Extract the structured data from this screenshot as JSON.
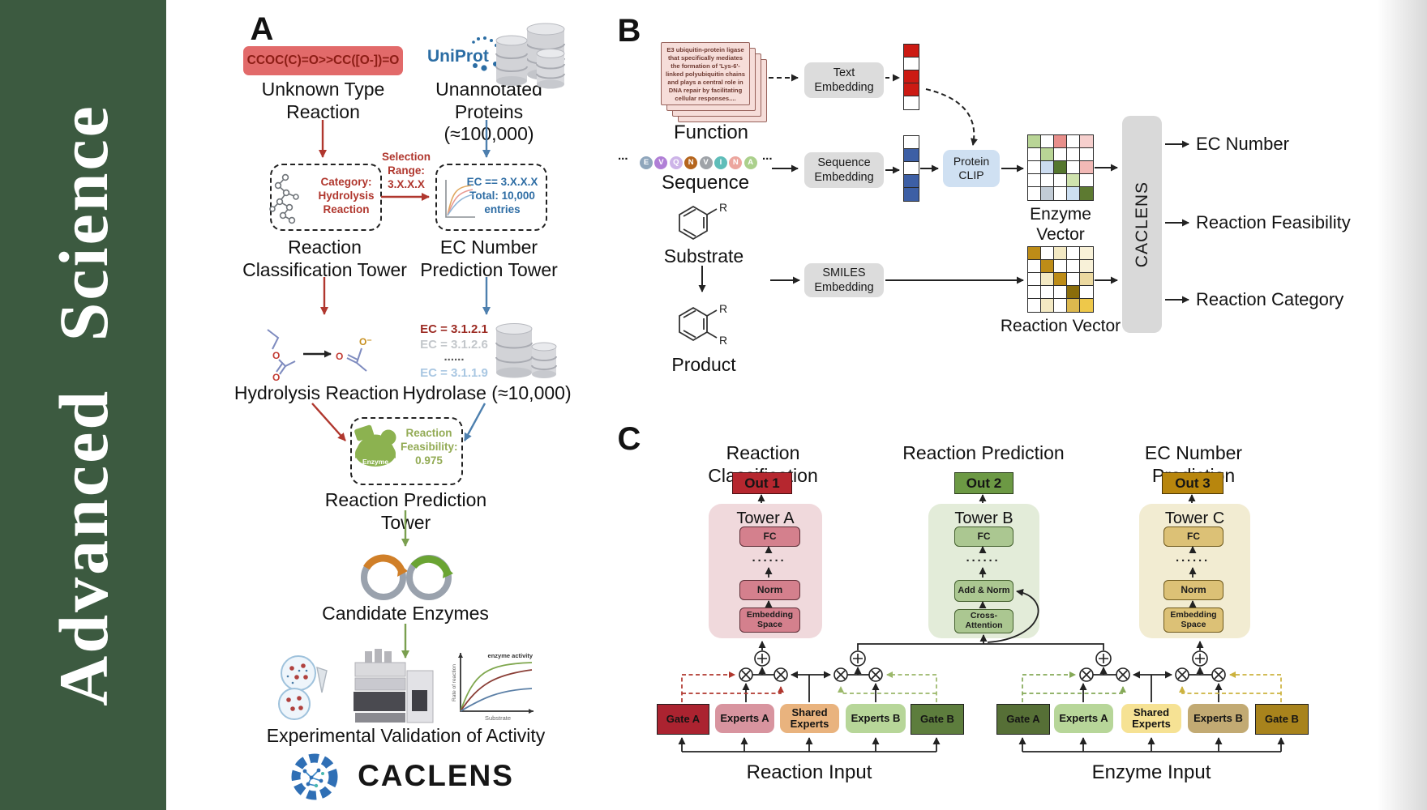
{
  "sidebar": {
    "journal": "Advanced Science"
  },
  "panelA": {
    "label": "A",
    "smiles": "CCOC(C)=O>>CC([O-])=O",
    "unknown_label": "Unknown Type\nReaction",
    "uniprot": "UniProt",
    "unannotated_label": "Unannotated\nProteins (≈100,000)",
    "selection_label": "Selection\nRange:\n3.X.X.X",
    "category_label": "Category:\nHydrolysis\nReaction",
    "ec_filter_label": "EC == 3.X.X.X\nTotal: 10,000\nentries",
    "classification_tower_label": "Reaction\nClassification Tower",
    "ec_tower_label": "EC Number\nPrediction Tower",
    "hydrolysis_label": "Hydrolysis Reaction",
    "ec_list": [
      {
        "text": "EC = 3.1.2.1",
        "color": "#9c2b23"
      },
      {
        "text": "EC = 3.1.2.6",
        "color": "#c3c7cb"
      },
      {
        "text": "......",
        "color": "#555555"
      },
      {
        "text": "EC = 3.1.1.9",
        "color": "#a9c7e2"
      }
    ],
    "hydrolase_label": "Hydrolase (≈10,000)",
    "enzyme_badge": "Enzyme",
    "feasibility_label": "Reaction\nFeasibility:\n0.975",
    "prediction_tower_label": "Reaction Prediction Tower",
    "candidates_label": "Candidate Enzymes",
    "activity_plot": {
      "series_label": "enzyme activity",
      "ylabel": "Rate of reaction",
      "xlabel": "Substrate"
    },
    "validation_label": "Experimental Validation of Activity",
    "brand": "CACLENS",
    "atom_o": "O",
    "atom_o_minus": "O⁻"
  },
  "panelB": {
    "label": "B",
    "function_card": "E3 ubiquitin-protein ligase that specifically mediates the formation of 'Lys-6'-linked polyubiquitin chains and plays a central role in DNA repair by facilitating cellular responses....",
    "function_label": "Function",
    "ellipsis": "...",
    "sequence_letters": [
      {
        "char": "E",
        "color": "#8fa6bc"
      },
      {
        "char": "V",
        "color": "#b07fd6"
      },
      {
        "char": "Q",
        "color": "#cdb4e8"
      },
      {
        "char": "N",
        "color": "#b5651d"
      },
      {
        "char": "V",
        "color": "#9fa3a8"
      },
      {
        "char": "I",
        "color": "#5fbdb9"
      },
      {
        "char": "N",
        "color": "#eca69e"
      },
      {
        "char": "A",
        "color": "#abd08c"
      }
    ],
    "sequence_label": "Sequence",
    "substrate_label": "Substrate",
    "product_label": "Product",
    "r_label": "R",
    "text_embedding": "Text\nEmbedding",
    "sequence_embedding": "Sequence\nEmbedding",
    "smiles_embedding": "SMILES\nEmbedding",
    "protein_clip": "Protein\nCLIP",
    "enzyme_vector_label": "Enzyme Vector",
    "reaction_vector_label": "Reaction Vector",
    "caclens": "CACLENS",
    "outputs": [
      "EC Number",
      "Reaction Feasibility",
      "Reaction Category"
    ],
    "text_vector": [
      "#cc1a13",
      "#ffffff",
      "#cc1a13",
      "#cc1a13",
      "#ffffff"
    ],
    "sequence_vector": [
      "#ffffff",
      "#3d5fa5",
      "#ffffff",
      "#3d5fa5",
      "#3d5fa5"
    ],
    "enzyme_vector_cells": [
      "#b9d596",
      "#ffffff",
      "#e88f8b",
      "#ffffff",
      "#f6cfcd",
      "#ffffff",
      "#b9d596",
      "#ffffff",
      "#ffffff",
      "#ffffff",
      "#ffffff",
      "#ccdcf0",
      "#55772e",
      "#ffffff",
      "#f2b9b6",
      "#ffffff",
      "#ffffff",
      "#ffffff",
      "#cfe3ae",
      "#ffffff",
      "#ffffff",
      "#c2ccd6",
      "#ffffff",
      "#ccdff2",
      "#5d7a31"
    ],
    "reaction_vector_cells": [
      "#bd8c17",
      "#ffffff",
      "#f3e9c3",
      "#ffffff",
      "#f8f1d8",
      "#ffffff",
      "#bd8c17",
      "#ffffff",
      "#ffffff",
      "#f8f1d8",
      "#ffffff",
      "#f3e9c3",
      "#bd8c17",
      "#ffffff",
      "#ecd9a0",
      "#ffffff",
      "#ffffff",
      "#ffffff",
      "#8a6d0b",
      "#ffffff",
      "#ffffff",
      "#f3e9c3",
      "#ffffff",
      "#dcb84e",
      "#eec84a"
    ]
  },
  "panelC": {
    "label": "C",
    "columns": [
      {
        "title": "Reaction Classification",
        "out_label": "Out 1",
        "out_bg": "#b6272f",
        "tower_label": "Tower A",
        "tower_bg": "#f0d9dc",
        "block_bg": "#d4808d",
        "block_border": "#5d2e37",
        "fc": "FC",
        "dots": "······",
        "mid": "Norm",
        "base": "Embedding\nSpace"
      },
      {
        "title": "Reaction Prediction",
        "out_label": "Out 2",
        "out_bg": "#6c9944",
        "tower_label": "Tower B",
        "tower_bg": "#e3ecd9",
        "block_bg": "#abc791",
        "block_border": "#44602e",
        "fc": "FC",
        "dots": "······",
        "mid": "Add & Norm",
        "base": "Cross-\nAttention"
      },
      {
        "title": "EC Number Prediction",
        "out_label": "Out 3",
        "out_bg": "#b8860d",
        "tower_label": "Tower C",
        "tower_bg": "#f2ecd2",
        "block_bg": "#dcc176",
        "block_border": "#6f5a1d",
        "fc": "FC",
        "dots": "······",
        "mid": "Norm",
        "base": "Embedding\nSpace"
      }
    ],
    "reaction_moe": {
      "input_label": "Reaction Input",
      "boxes": [
        {
          "label": "Gate A",
          "bg": "#ab2330"
        },
        {
          "label": "Experts A",
          "bg": "#d8949f"
        },
        {
          "label": "Shared\nExperts",
          "bg": "#e9b37e"
        },
        {
          "label": "Experts B",
          "bg": "#b7d699"
        },
        {
          "label": "Gate B",
          "bg": "#5d7d3d"
        }
      ]
    },
    "enzyme_moe": {
      "input_label": "Enzyme Input",
      "boxes": [
        {
          "label": "Gate A",
          "bg": "#566f36"
        },
        {
          "label": "Experts A",
          "bg": "#b7d699"
        },
        {
          "label": "Shared\nExperts",
          "bg": "#f6e294"
        },
        {
          "label": "Experts B",
          "bg": "#c2aa73"
        },
        {
          "label": "Gate B",
          "bg": "#a8831c"
        }
      ]
    }
  }
}
